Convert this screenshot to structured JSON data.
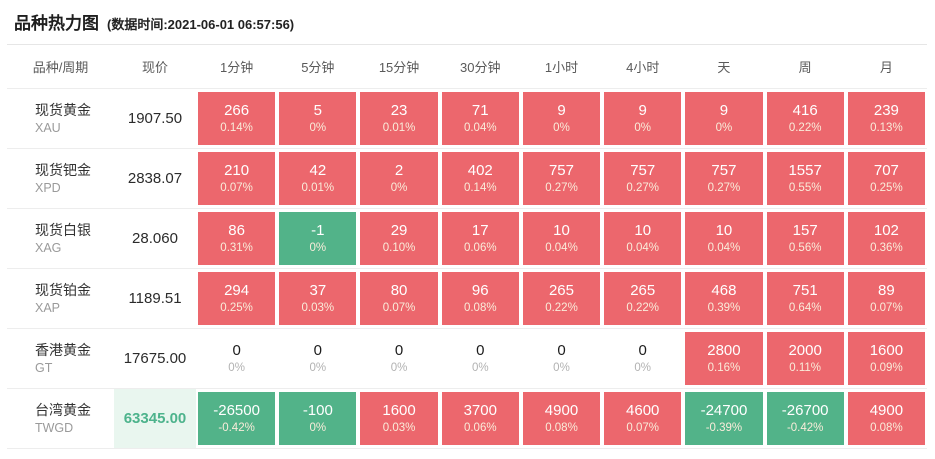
{
  "header": {
    "title": "品种热力图",
    "subtitle": "(数据时间:2021-06-01 06:57:56)"
  },
  "chart_data": {
    "type": "heatmap",
    "title": "品种热力图",
    "timestamp_label": "(数据时间:2021-06-01 06:57:56)",
    "colors": {
      "up": "#ec676d",
      "down": "#52b389",
      "price_down_bg": "#e9f6ef",
      "price_down_text": "#4db38c"
    },
    "columns": [
      "品种/周期",
      "现价",
      "1分钟",
      "5分钟",
      "15分钟",
      "30分钟",
      "1小时",
      "4小时",
      "天",
      "周",
      "月"
    ],
    "rows": [
      {
        "name": "现货黄金",
        "code": "XAU",
        "price": "1907.50",
        "price_state": "flat",
        "cells": [
          {
            "value": "266",
            "pct": "0.14%",
            "state": "up"
          },
          {
            "value": "5",
            "pct": "0%",
            "state": "up"
          },
          {
            "value": "23",
            "pct": "0.01%",
            "state": "up"
          },
          {
            "value": "71",
            "pct": "0.04%",
            "state": "up"
          },
          {
            "value": "9",
            "pct": "0%",
            "state": "up"
          },
          {
            "value": "9",
            "pct": "0%",
            "state": "up"
          },
          {
            "value": "9",
            "pct": "0%",
            "state": "up"
          },
          {
            "value": "416",
            "pct": "0.22%",
            "state": "up"
          },
          {
            "value": "239",
            "pct": "0.13%",
            "state": "up"
          }
        ]
      },
      {
        "name": "现货钯金",
        "code": "XPD",
        "price": "2838.07",
        "price_state": "flat",
        "cells": [
          {
            "value": "210",
            "pct": "0.07%",
            "state": "up"
          },
          {
            "value": "42",
            "pct": "0.01%",
            "state": "up"
          },
          {
            "value": "2",
            "pct": "0%",
            "state": "up"
          },
          {
            "value": "402",
            "pct": "0.14%",
            "state": "up"
          },
          {
            "value": "757",
            "pct": "0.27%",
            "state": "up"
          },
          {
            "value": "757",
            "pct": "0.27%",
            "state": "up"
          },
          {
            "value": "757",
            "pct": "0.27%",
            "state": "up"
          },
          {
            "value": "1557",
            "pct": "0.55%",
            "state": "up"
          },
          {
            "value": "707",
            "pct": "0.25%",
            "state": "up"
          }
        ]
      },
      {
        "name": "现货白银",
        "code": "XAG",
        "price": "28.060",
        "price_state": "flat",
        "cells": [
          {
            "value": "86",
            "pct": "0.31%",
            "state": "up"
          },
          {
            "value": "-1",
            "pct": "0%",
            "state": "down"
          },
          {
            "value": "29",
            "pct": "0.10%",
            "state": "up"
          },
          {
            "value": "17",
            "pct": "0.06%",
            "state": "up"
          },
          {
            "value": "10",
            "pct": "0.04%",
            "state": "up"
          },
          {
            "value": "10",
            "pct": "0.04%",
            "state": "up"
          },
          {
            "value": "10",
            "pct": "0.04%",
            "state": "up"
          },
          {
            "value": "157",
            "pct": "0.56%",
            "state": "up"
          },
          {
            "value": "102",
            "pct": "0.36%",
            "state": "up"
          }
        ]
      },
      {
        "name": "现货铂金",
        "code": "XAP",
        "price": "1189.51",
        "price_state": "flat",
        "cells": [
          {
            "value": "294",
            "pct": "0.25%",
            "state": "up"
          },
          {
            "value": "37",
            "pct": "0.03%",
            "state": "up"
          },
          {
            "value": "80",
            "pct": "0.07%",
            "state": "up"
          },
          {
            "value": "96",
            "pct": "0.08%",
            "state": "up"
          },
          {
            "value": "265",
            "pct": "0.22%",
            "state": "up"
          },
          {
            "value": "265",
            "pct": "0.22%",
            "state": "up"
          },
          {
            "value": "468",
            "pct": "0.39%",
            "state": "up"
          },
          {
            "value": "751",
            "pct": "0.64%",
            "state": "up"
          },
          {
            "value": "89",
            "pct": "0.07%",
            "state": "up"
          }
        ]
      },
      {
        "name": "香港黄金",
        "code": "GT",
        "price": "17675.00",
        "price_state": "flat",
        "cells": [
          {
            "value": "0",
            "pct": "0%",
            "state": "flat"
          },
          {
            "value": "0",
            "pct": "0%",
            "state": "flat"
          },
          {
            "value": "0",
            "pct": "0%",
            "state": "flat"
          },
          {
            "value": "0",
            "pct": "0%",
            "state": "flat"
          },
          {
            "value": "0",
            "pct": "0%",
            "state": "flat"
          },
          {
            "value": "0",
            "pct": "0%",
            "state": "flat"
          },
          {
            "value": "2800",
            "pct": "0.16%",
            "state": "up"
          },
          {
            "value": "2000",
            "pct": "0.11%",
            "state": "up"
          },
          {
            "value": "1600",
            "pct": "0.09%",
            "state": "up"
          }
        ]
      },
      {
        "name": "台湾黄金",
        "code": "TWGD",
        "price": "63345.00",
        "price_state": "down",
        "cells": [
          {
            "value": "-26500",
            "pct": "-0.42%",
            "state": "down"
          },
          {
            "value": "-100",
            "pct": "0%",
            "state": "down"
          },
          {
            "value": "1600",
            "pct": "0.03%",
            "state": "up"
          },
          {
            "value": "3700",
            "pct": "0.06%",
            "state": "up"
          },
          {
            "value": "4900",
            "pct": "0.08%",
            "state": "up"
          },
          {
            "value": "4600",
            "pct": "0.07%",
            "state": "up"
          },
          {
            "value": "-24700",
            "pct": "-0.39%",
            "state": "down"
          },
          {
            "value": "-26700",
            "pct": "-0.42%",
            "state": "down"
          },
          {
            "value": "4900",
            "pct": "0.08%",
            "state": "up"
          }
        ]
      }
    ]
  }
}
